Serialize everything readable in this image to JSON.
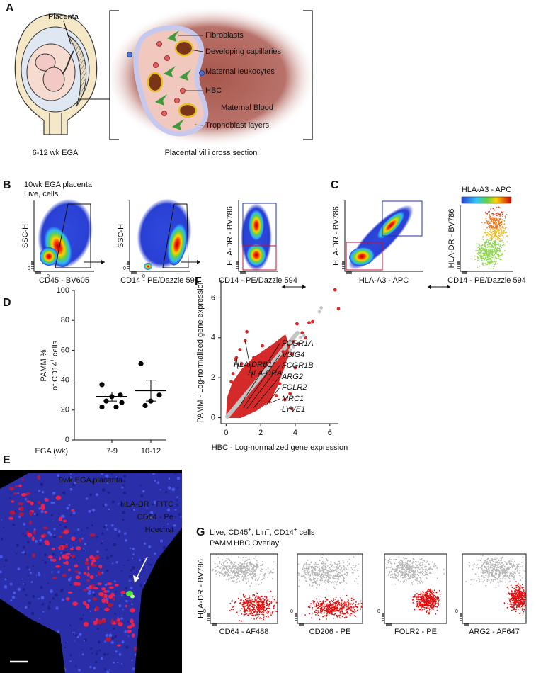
{
  "panel_a": {
    "label": "A",
    "placenta": "Placenta",
    "uterus_caption": "6-12 wk EGA",
    "villi_labels": [
      "Fibroblasts",
      "Developing capillaries",
      "Maternal leukocytes",
      "HBC",
      "Maternal Blood",
      "Trophoblast layers"
    ],
    "villi_caption": "Placental villi cross section"
  },
  "panel_b": {
    "label": "B",
    "sample": "10wk EGA placenta",
    "gate": "Live, cells",
    "plots": [
      {
        "y_label": "SSC-H",
        "x_label": "CD45 - BV605",
        "tick_label": "0"
      },
      {
        "y_label": "SSC-H",
        "x_label": "CD14 - PE/Dazzle 594",
        "tick_label": "0"
      },
      {
        "y_label": "HLA-DR - BV786",
        "x_label": "CD14 - PE/Dazzle 594"
      }
    ]
  },
  "panel_c": {
    "label": "C",
    "colorbar_label": "HLA-A3 - APC",
    "plots": [
      {
        "y_label": "HLA-DR - BV786",
        "x_label": "HLA-A3 - APC"
      },
      {
        "y_label": "HLA-DR - BV786",
        "x_label": "CD14 - PE/Dazzle 594"
      }
    ]
  },
  "panel_e": {
    "label": "E",
    "sample": "9wk EGA placenta",
    "stains": [
      "HLA-DR - FITC",
      "CD64 - Pe",
      "Hoechst"
    ]
  },
  "panel_g": {
    "label": "G",
    "gate": [
      {
        "text": "Live, CD45"
      },
      {
        "text": "+",
        "sup": true
      },
      {
        "text": ", Lin"
      },
      {
        "text": "−",
        "sup": true
      },
      {
        "text": ", CD14"
      },
      {
        "text": "+",
        "sup": true
      },
      {
        "text": " cells"
      }
    ],
    "legend": [
      "PAMM",
      "HBC Overlay"
    ],
    "y_label": "HLA-DR - BV786",
    "tick_label": "0",
    "x_labels": [
      "CD64 - AF488",
      "CD206 - PE",
      "FOLR2 - PE",
      "ARG2 - AF647"
    ]
  },
  "chart_data": [
    {
      "type": "dotplot",
      "panel_label": "D",
      "y_label": "PAMM %",
      "y_label_2": [
        {
          "text": "of CD14"
        },
        {
          "text": "+",
          "sup": true
        },
        {
          "text": " cells"
        }
      ],
      "x_label": "EGA (wk)",
      "categories": [
        "7-9",
        "10-12"
      ],
      "values": [
        [
          37,
          30,
          29,
          26,
          25,
          22,
          22
        ],
        [
          51,
          30,
          26,
          23
        ]
      ],
      "means": [
        29,
        33
      ],
      "errors": [
        3,
        7
      ],
      "ylim": [
        0,
        100
      ],
      "yticks": [
        0,
        20,
        40,
        60,
        80,
        100
      ],
      "color": "#000000"
    },
    {
      "type": "scatter",
      "panel_label": "F",
      "x_label": "HBC - Log-normalized gene expression",
      "y_label": "PAMM - Log-normalized gene expression",
      "xlim": [
        -0.3,
        6.5
      ],
      "ylim": [
        -0.3,
        6.9
      ],
      "xticks": [
        0,
        2,
        4,
        6
      ],
      "yticks": [
        0,
        2,
        4,
        6
      ],
      "series": [
        {
          "color": "#d42a2a",
          "x": [
            6.3,
            6.5,
            4.8,
            4.4,
            4.1,
            5.0,
            1.2,
            1.1,
            0.6,
            0.55,
            0.9,
            1.5,
            2.1,
            2.4,
            2.6,
            3.0,
            3.3,
            3.6,
            3.9,
            2.8,
            3.2,
            3.5,
            3.8,
            4.2,
            4.0,
            3.7,
            3.4,
            3.8,
            2.5,
            2.9,
            3.1,
            2.7,
            1.4,
            1.0,
            0.4,
            0.3,
            1.6,
            0.8,
            2.2,
            4.6
          ],
          "y": [
            6.4,
            5.45,
            4.75,
            4.25,
            4.7,
            4.8,
            4.3,
            3.85,
            3.0,
            2.9,
            2.7,
            2.6,
            3.6,
            3.4,
            3.2,
            3.5,
            3.3,
            3.6,
            3.8,
            2.7,
            2.9,
            3.0,
            3.2,
            3.7,
            2.5,
            1.2,
            0.9,
            0.45,
            0.8,
            1.1,
            1.7,
            1.5,
            1.8,
            2.2,
            2.2,
            1.8,
            3.0,
            3.4,
            2.9,
            4.0
          ]
        },
        {
          "color": "#c4c4c4",
          "x": [
            5.5,
            5.4,
            4.5,
            4.3,
            3.7,
            3.9
          ],
          "y": [
            5.5,
            5.3,
            4.1,
            4.0,
            3.4,
            3.55
          ]
        }
      ],
      "annotations": [
        {
          "text": "HLA-DRB1",
          "x": 0.6,
          "y": 3.0
        },
        {
          "text": "HLA-DRA",
          "x": 1.1,
          "y": 3.85
        },
        {
          "text": "FCGR1A",
          "x": 0.8,
          "y": 0.6
        },
        {
          "text": "VSIG4",
          "x": 1.0,
          "y": 0.5
        },
        {
          "text": "FCGR1B",
          "x": 1.2,
          "y": 0.45
        },
        {
          "text": "ARG2",
          "x": 1.6,
          "y": 0.5
        },
        {
          "text": "FOLR2",
          "x": 2.3,
          "y": 0.6
        },
        {
          "text": "MRC1",
          "x": 2.6,
          "y": 0.75
        },
        {
          "text": "LYVE1",
          "x": 3.8,
          "y": 0.45
        }
      ]
    }
  ]
}
